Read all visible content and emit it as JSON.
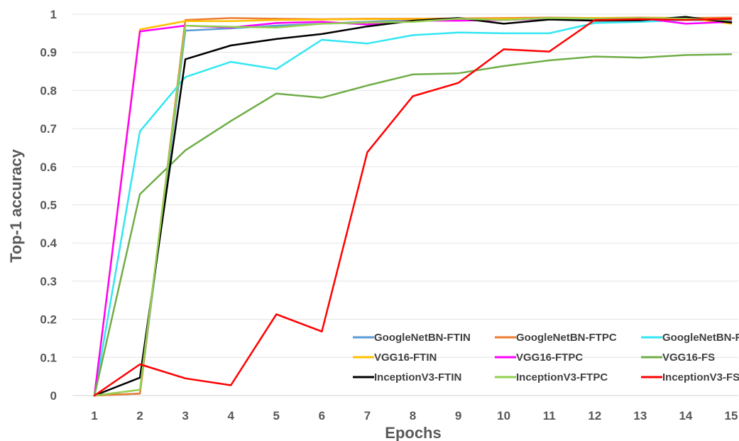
{
  "chart_data": {
    "type": "line",
    "xlabel": "Epochs",
    "ylabel": "Top-1 accuracy",
    "x": [
      1,
      2,
      3,
      4,
      5,
      6,
      7,
      8,
      9,
      10,
      11,
      12,
      13,
      14,
      15
    ],
    "xlim": [
      1,
      15
    ],
    "ylim": [
      0,
      1
    ],
    "yticks": [
      0,
      0.1,
      0.2,
      0.3,
      0.4,
      0.5,
      0.6,
      0.7,
      0.8,
      0.9,
      1
    ],
    "grid": "horizontal",
    "legend_position": "bottom-right",
    "series": [
      {
        "name": "GoogleNetBN-FTIN",
        "color": "#5B9BD5",
        "values": [
          0,
          0.005,
          0.957,
          0.963,
          0.97,
          0.975,
          0.98,
          0.985,
          0.985,
          0.987,
          0.988,
          0.988,
          0.988,
          0.989,
          0.99
        ]
      },
      {
        "name": "GoogleNetBN-FTPC",
        "color": "#ED7D31",
        "values": [
          0,
          0.005,
          0.985,
          0.99,
          0.988,
          0.987,
          0.988,
          0.988,
          0.989,
          0.99,
          0.991,
          0.99,
          0.991,
          0.99,
          0.991
        ]
      },
      {
        "name": "GoogleNetBN-FS",
        "color": "#33E6F2",
        "values": [
          0,
          0.693,
          0.835,
          0.875,
          0.856,
          0.933,
          0.923,
          0.945,
          0.952,
          0.95,
          0.95,
          0.977,
          0.98,
          0.985,
          0.982
        ]
      },
      {
        "name": "VGG16-FTIN",
        "color": "#FFC000",
        "values": [
          0,
          0.96,
          0.982,
          0.982,
          0.985,
          0.986,
          0.987,
          0.987,
          0.987,
          0.988,
          0.989,
          0.99,
          0.99,
          0.99,
          0.975
        ]
      },
      {
        "name": "VGG16-FTPC",
        "color": "#FF00FF",
        "values": [
          0,
          0.955,
          0.97,
          0.965,
          0.977,
          0.98,
          0.973,
          0.983,
          0.983,
          0.985,
          0.988,
          0.985,
          0.99,
          0.975,
          0.98
        ]
      },
      {
        "name": "VGG16-FS",
        "color": "#70AD47",
        "values": [
          0,
          0.528,
          0.643,
          0.72,
          0.792,
          0.781,
          0.813,
          0.842,
          0.845,
          0.864,
          0.879,
          0.889,
          0.886,
          0.893,
          0.895
        ]
      },
      {
        "name": "InceptionV3-FTIN",
        "color": "#000000",
        "values": [
          0,
          0.047,
          0.882,
          0.918,
          0.935,
          0.948,
          0.968,
          0.983,
          0.99,
          0.975,
          0.986,
          0.983,
          0.984,
          0.993,
          0.978
        ]
      },
      {
        "name": "InceptionV3-FTPC",
        "color": "#92D050",
        "values": [
          0,
          0.015,
          0.97,
          0.967,
          0.965,
          0.975,
          0.978,
          0.98,
          0.988,
          0.985,
          0.99,
          0.988,
          0.99,
          0.988,
          0.985
        ]
      },
      {
        "name": "InceptionV3-FS",
        "color": "#FF0000",
        "values": [
          0,
          0.082,
          0.045,
          0.027,
          0.213,
          0.168,
          0.638,
          0.785,
          0.82,
          0.908,
          0.902,
          0.985,
          0.987,
          0.985,
          0.988
        ]
      }
    ]
  }
}
